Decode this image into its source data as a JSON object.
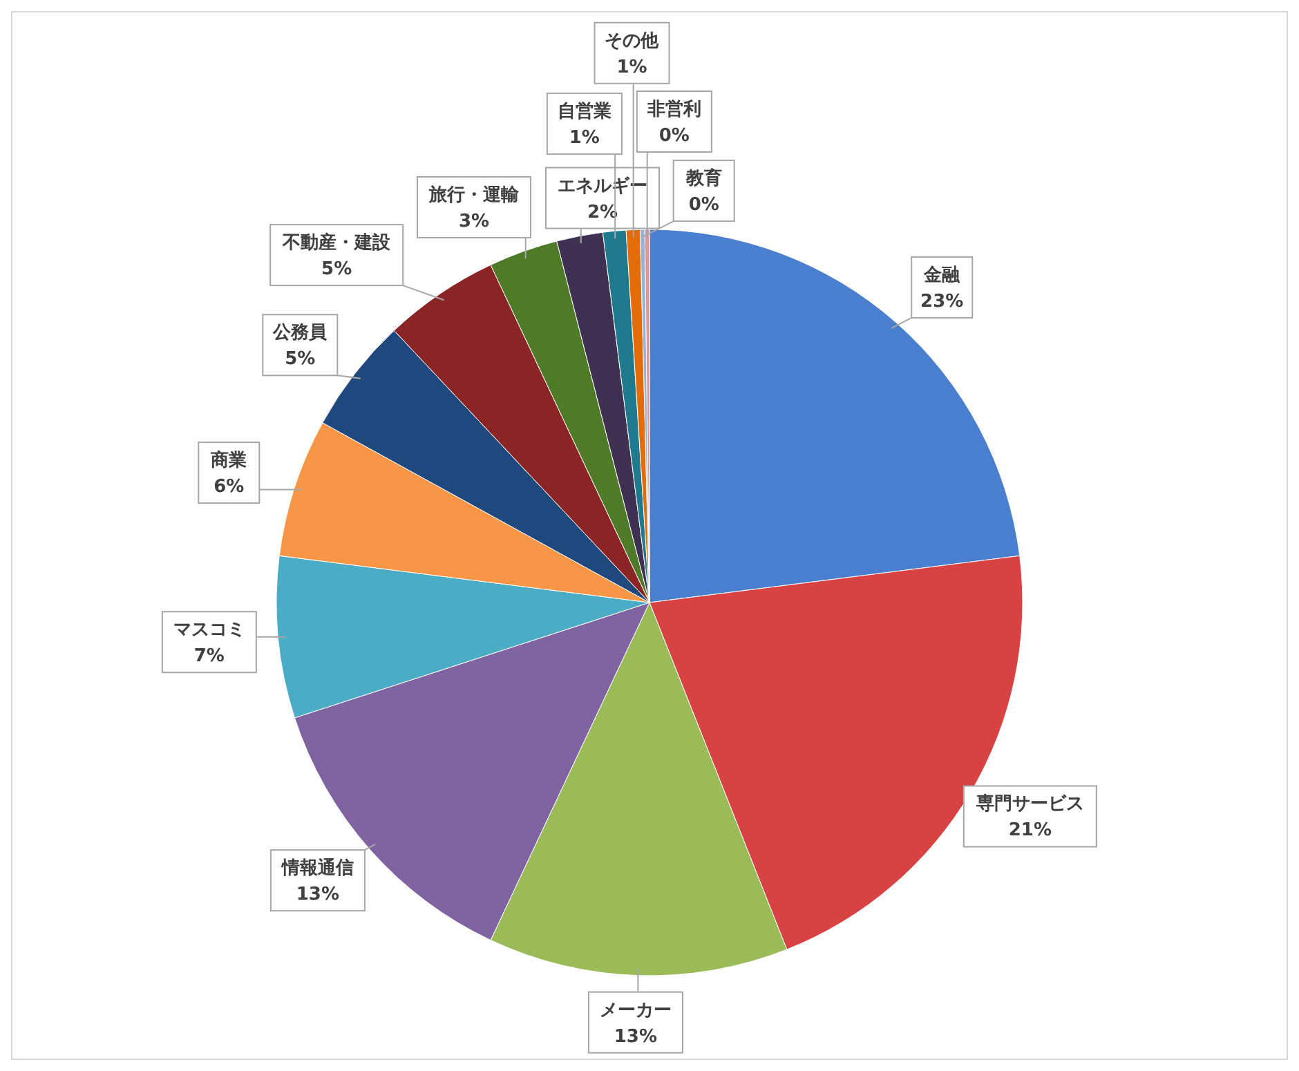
{
  "chart_data": {
    "type": "pie",
    "categories": [
      "金融",
      "専門サービス",
      "メーカー",
      "情報通信",
      "マスコミ",
      "商業",
      "公務員",
      "不動産・建設",
      "旅行・運輸",
      "エネルギー",
      "自営業",
      "その他",
      "教育",
      "非営利"
    ],
    "values": [
      23,
      21,
      13,
      13,
      7,
      6,
      5,
      5,
      3,
      2,
      1,
      0.6,
      0.2,
      0.2
    ],
    "value_labels": [
      "23%",
      "21%",
      "13%",
      "13%",
      "7%",
      "6%",
      "5%",
      "5%",
      "3%",
      "2%",
      "1%",
      "1%",
      "0%",
      "0%"
    ],
    "colors": [
      "#4a7fd0",
      "#d84242",
      "#9bbb59",
      "#8064a2",
      "#4bacc6",
      "#f79646",
      "#1f497d",
      "#8b2424",
      "#4f7a28",
      "#3f3151",
      "#1e7a8c",
      "#e36c09",
      "#95b3d7",
      "#d99694"
    ],
    "data_labels": true
  }
}
